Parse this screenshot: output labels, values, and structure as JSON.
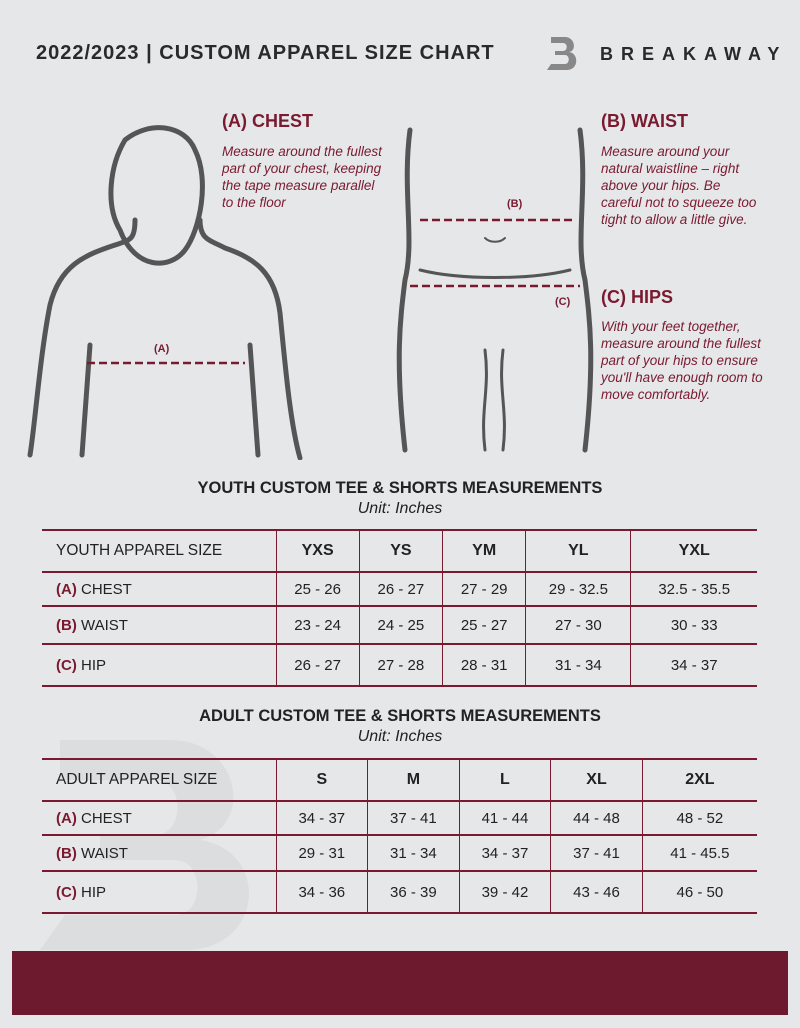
{
  "header": {
    "title": "2022/2023 | CUSTOM APPAREL SIZE CHART",
    "brand": "BREAKAWAY"
  },
  "measures": {
    "chest": {
      "title": "(A) CHEST",
      "text": "Measure around the fullest part of your chest, keeping the tape measure parallel to the floor",
      "marker": "(A)"
    },
    "waist": {
      "title": "(B) WAIST",
      "text": "Measure around your natural waistline – right above your hips. Be careful not to squeeze too tight to allow a little give.",
      "marker": "(B)"
    },
    "hips": {
      "title": "(C) HIPS",
      "text": "With your feet together, measure around the fullest part of your hips to ensure you'll have enough room to move comfortably.",
      "marker": "(C)"
    }
  },
  "youth": {
    "title": "YOUTH CUSTOM TEE & SHORTS MEASUREMENTS",
    "unit": "Unit: Inches",
    "header": "YOUTH APPAREL SIZE",
    "sizes": [
      "YXS",
      "YS",
      "YM",
      "YL",
      "YXL"
    ],
    "rows": [
      {
        "code": "(A)",
        "name": "CHEST",
        "values": [
          "25 - 26",
          "26 - 27",
          "27 - 29",
          "29 - 32.5",
          "32.5 - 35.5"
        ]
      },
      {
        "code": "(B)",
        "name": "WAIST",
        "values": [
          "23 - 24",
          "24 - 25",
          "25 - 27",
          "27 - 30",
          "30 - 33"
        ]
      },
      {
        "code": "(C)",
        "name": "HIP",
        "values": [
          "26 - 27",
          "27 - 28",
          "28 - 31",
          "31 - 34",
          "34 - 37"
        ]
      }
    ]
  },
  "adult": {
    "title": "ADULT CUSTOM TEE & SHORTS MEASUREMENTS",
    "unit": "Unit: Inches",
    "header": "ADULT APPAREL SIZE",
    "sizes": [
      "S",
      "M",
      "L",
      "XL",
      "2XL"
    ],
    "rows": [
      {
        "code": "(A)",
        "name": "CHEST",
        "values": [
          "34 - 37",
          "37 - 41",
          "41 - 44",
          "44 - 48",
          "48 - 52"
        ]
      },
      {
        "code": "(B)",
        "name": "WAIST",
        "values": [
          "29 - 31",
          "31 - 34",
          "34 - 37",
          "37 - 41",
          "41 - 45.5"
        ]
      },
      {
        "code": "(C)",
        "name": "HIP",
        "values": [
          "34 - 36",
          "36 - 39",
          "39 - 42",
          "43 - 46",
          "46 - 50"
        ]
      }
    ]
  },
  "colors": {
    "accent": "#6e1a2e",
    "background": "#e6e7e9"
  }
}
